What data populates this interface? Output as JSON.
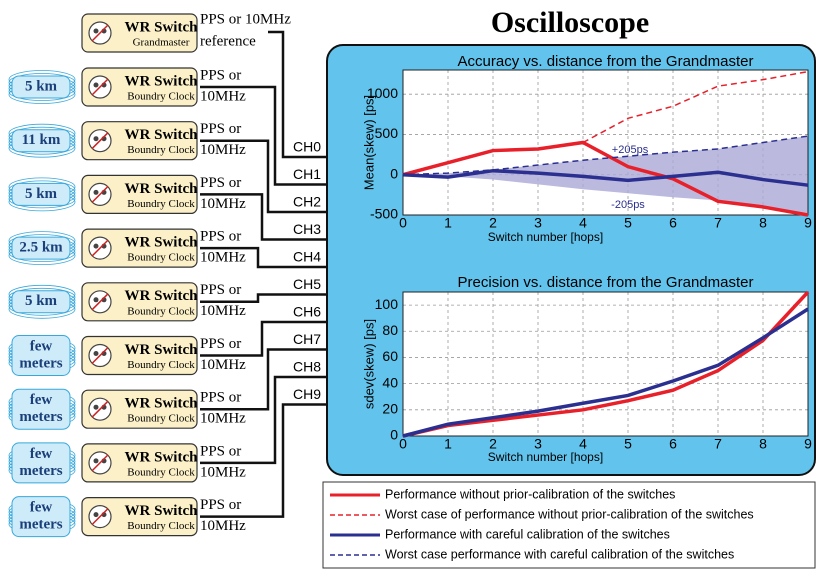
{
  "diagram": {
    "title": "Oscilloscope",
    "grandmaster": {
      "name": "WR Switch",
      "role": "Grandmaster",
      "output": [
        "PPS or 10MHz",
        "reference"
      ]
    },
    "clocks": [
      {
        "fiber": [
          "5 km"
        ],
        "name": "WR Switch",
        "role": "Boundry Clock",
        "output": [
          "PPS or",
          "10MHz"
        ]
      },
      {
        "fiber": [
          "11 km"
        ],
        "name": "WR Switch",
        "role": "Boundry Clock",
        "output": [
          "PPS or",
          "10MHz"
        ]
      },
      {
        "fiber": [
          "5 km"
        ],
        "name": "WR Switch",
        "role": "Boundry Clock",
        "output": [
          "PPS or",
          "10MHz"
        ]
      },
      {
        "fiber": [
          "2.5 km"
        ],
        "name": "WR Switch",
        "role": "Boundry Clock",
        "output": [
          "PPS or",
          "10MHz"
        ]
      },
      {
        "fiber": [
          "5 km"
        ],
        "name": "WR Switch",
        "role": "Boundry Clock",
        "output": [
          "PPS or",
          "10MHz"
        ]
      },
      {
        "fiber": [
          "few",
          "meters"
        ],
        "name": "WR Switch",
        "role": "Boundry Clock",
        "output": [
          "PPS or",
          "10MHz"
        ]
      },
      {
        "fiber": [
          "few",
          "meters"
        ],
        "name": "WR Switch",
        "role": "Boundry Clock",
        "output": [
          "PPS or",
          "10MHz"
        ]
      },
      {
        "fiber": [
          "few",
          "meters"
        ],
        "name": "WR Switch",
        "role": "Boundry Clock",
        "output": [
          "PPS or",
          "10MHz"
        ]
      },
      {
        "fiber": [
          "few",
          "meters"
        ],
        "name": "WR Switch",
        "role": "Boundry Clock",
        "output": [
          "PPS or",
          "10MHz"
        ]
      }
    ],
    "channels": [
      "CH0",
      "CH1",
      "CH2",
      "CH3",
      "CH4",
      "CH5",
      "CH6",
      "CH7",
      "CH8",
      "CH9"
    ]
  },
  "chart_data": [
    {
      "type": "line",
      "title": "Accuracy vs. distance from the Grandmaster",
      "x_label": "Switch number [hops]",
      "y_label": "Mean(skew) [ps]",
      "x": [
        0,
        1,
        2,
        3,
        4,
        5,
        6,
        7,
        8,
        9
      ],
      "xlim": [
        0,
        9
      ],
      "xticks": [
        0,
        1,
        2,
        3,
        4,
        5,
        6,
        7,
        8,
        9
      ],
      "ylim": [
        -500,
        1300
      ],
      "yticks": [
        -500,
        0,
        500,
        1000
      ],
      "grid": true,
      "band": {
        "color": "#aaa8d6",
        "upper": [
          0,
          20,
          60,
          120,
          180,
          230,
          280,
          320,
          400,
          480
        ],
        "lower": [
          0,
          -20,
          -60,
          -120,
          -180,
          -230,
          -280,
          -320,
          -400,
          -480
        ]
      },
      "annotations": [
        "+205ps",
        "-205ps"
      ],
      "series": [
        {
          "name": "Performance without prior-calibration of the switches",
          "color": "#e8202a",
          "dash": false,
          "values": [
            0,
            150,
            300,
            320,
            400,
            100,
            -50,
            -330,
            -400,
            -500
          ]
        },
        {
          "name": "Worst case of performance without prior-calibration of the switches",
          "color": "#e8202a",
          "dash": true,
          "values": [
            null,
            null,
            null,
            null,
            400,
            700,
            850,
            1100,
            1180,
            1280
          ]
        },
        {
          "name": "Performance with careful calibration of the switches",
          "color": "#2b2f8f",
          "dash": false,
          "values": [
            0,
            -30,
            50,
            20,
            -20,
            -70,
            -20,
            30,
            -60,
            -130
          ]
        },
        {
          "name": "Worst case performance with careful calibration of the switches",
          "color": "#2b2f8f",
          "dash": true,
          "values": [
            0,
            20,
            60,
            120,
            180,
            230,
            280,
            320,
            400,
            480
          ]
        }
      ]
    },
    {
      "type": "line",
      "title": "Precision vs. distance from the Grandmaster",
      "x_label": "Switch number [hops]",
      "y_label": "sdev(skew) [ps]",
      "x": [
        0,
        1,
        2,
        3,
        4,
        5,
        6,
        7,
        8,
        9
      ],
      "xlim": [
        0,
        9
      ],
      "xticks": [
        0,
        1,
        2,
        3,
        4,
        5,
        6,
        7,
        8,
        9
      ],
      "ylim": [
        0,
        110
      ],
      "yticks": [
        0,
        20,
        40,
        60,
        80,
        100
      ],
      "grid": true,
      "series": [
        {
          "color": "#e8202a",
          "dash": false,
          "values": [
            0,
            8,
            12,
            16,
            20,
            27,
            35,
            50,
            73,
            110
          ]
        },
        {
          "color": "#2b2f8f",
          "dash": false,
          "values": [
            0,
            9,
            14,
            19,
            25,
            31,
            42,
            54,
            75,
            97
          ]
        }
      ]
    }
  ]
}
